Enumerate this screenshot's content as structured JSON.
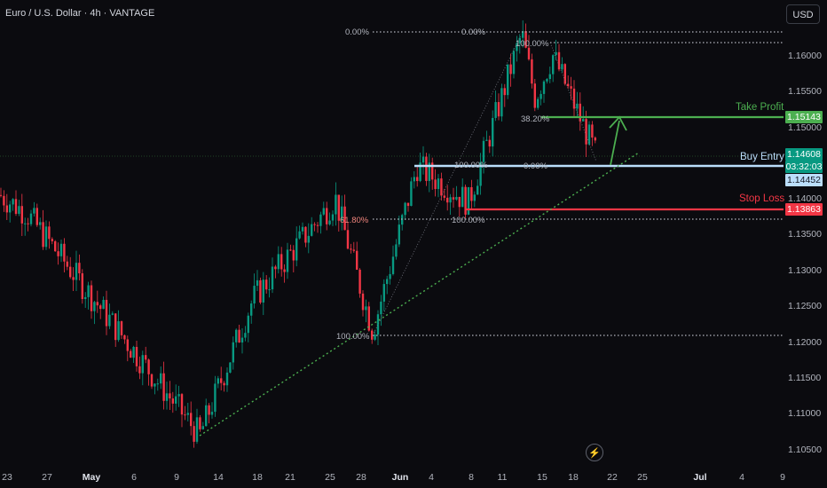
{
  "header": {
    "title": "Euro / U.S. Dollar · 4h · VANTAGE",
    "currency_button": "USD"
  },
  "price_axis": {
    "labels": [
      "1.16000",
      "1.15500",
      "1.15000",
      "1.14000",
      "1.13500",
      "1.13000",
      "1.12500",
      "1.12000",
      "1.11500",
      "1.11000",
      "1.10500"
    ]
  },
  "time_axis": {
    "labels": [
      {
        "text": "23",
        "bold": false
      },
      {
        "text": "27",
        "bold": false
      },
      {
        "text": "May",
        "bold": true
      },
      {
        "text": "6",
        "bold": false
      },
      {
        "text": "9",
        "bold": false
      },
      {
        "text": "14",
        "bold": false
      },
      {
        "text": "18",
        "bold": false
      },
      {
        "text": "21",
        "bold": false
      },
      {
        "text": "25",
        "bold": false
      },
      {
        "text": "28",
        "bold": false
      },
      {
        "text": "Jun",
        "bold": true
      },
      {
        "text": "4",
        "bold": false
      },
      {
        "text": "8",
        "bold": false
      },
      {
        "text": "11",
        "bold": false
      },
      {
        "text": "15",
        "bold": false
      },
      {
        "text": "18",
        "bold": false
      },
      {
        "text": "22",
        "bold": false
      },
      {
        "text": "25",
        "bold": false
      },
      {
        "text": "Jul",
        "bold": true
      },
      {
        "text": "4",
        "bold": false
      },
      {
        "text": "9",
        "bold": false
      }
    ]
  },
  "price_tags": {
    "take_profit": "1.15143",
    "current_price": "1.14608",
    "countdown": "03:32:03",
    "buy_entry": "1.14452",
    "stop_loss": "1.13863"
  },
  "annotations": {
    "take_profit": "Take Profit",
    "buy_entry": "Buy Entry",
    "stop_loss": "Stop Loss"
  },
  "fib_labels": {
    "top_left_0": "0.00%",
    "top_right_0": "0.00%",
    "high_100": "100.00%",
    "retr_382": "38.20%",
    "entry_100": "100.00%",
    "entry_0": "0.00%",
    "retr_618": "61.80%",
    "low_100a": "100.00%",
    "low_100b": "100.00%"
  },
  "colors": {
    "background": "#0b0b0f",
    "up": "#089981",
    "down": "#f23645",
    "take_profit": "#4caf50",
    "stop_loss": "#f23645",
    "entry": "#bbdefb",
    "trend": "#4caf50"
  },
  "chart_data": {
    "type": "candlestick",
    "symbol": "EURUSD",
    "timeframe": "4h",
    "ylim": [
      1.1034,
      1.1652
    ],
    "levels": {
      "take_profit": 1.15143,
      "buy_entry": 1.14452,
      "stop_loss": 1.13863,
      "current": 1.14608
    },
    "ohlc_key_points": [
      {
        "x": "Apr 23",
        "close": 1.1405
      },
      {
        "x": "Apr 29",
        "close": 1.138
      },
      {
        "x": "May 12",
        "close": 1.107
      },
      {
        "x": "May 19",
        "close": 1.126
      },
      {
        "x": "May 26",
        "close": 1.14
      },
      {
        "x": "May 29",
        "close": 1.1215
      },
      {
        "x": "Jun 5",
        "close": 1.1445
      },
      {
        "x": "Jun 9",
        "close": 1.1395
      },
      {
        "x": "Jun 12",
        "close": 1.163
      },
      {
        "x": "Jun 15",
        "close": 1.154
      },
      {
        "x": "Jun 16",
        "close": 1.16
      },
      {
        "x": "Jun 19",
        "close": 1.146
      }
    ]
  }
}
